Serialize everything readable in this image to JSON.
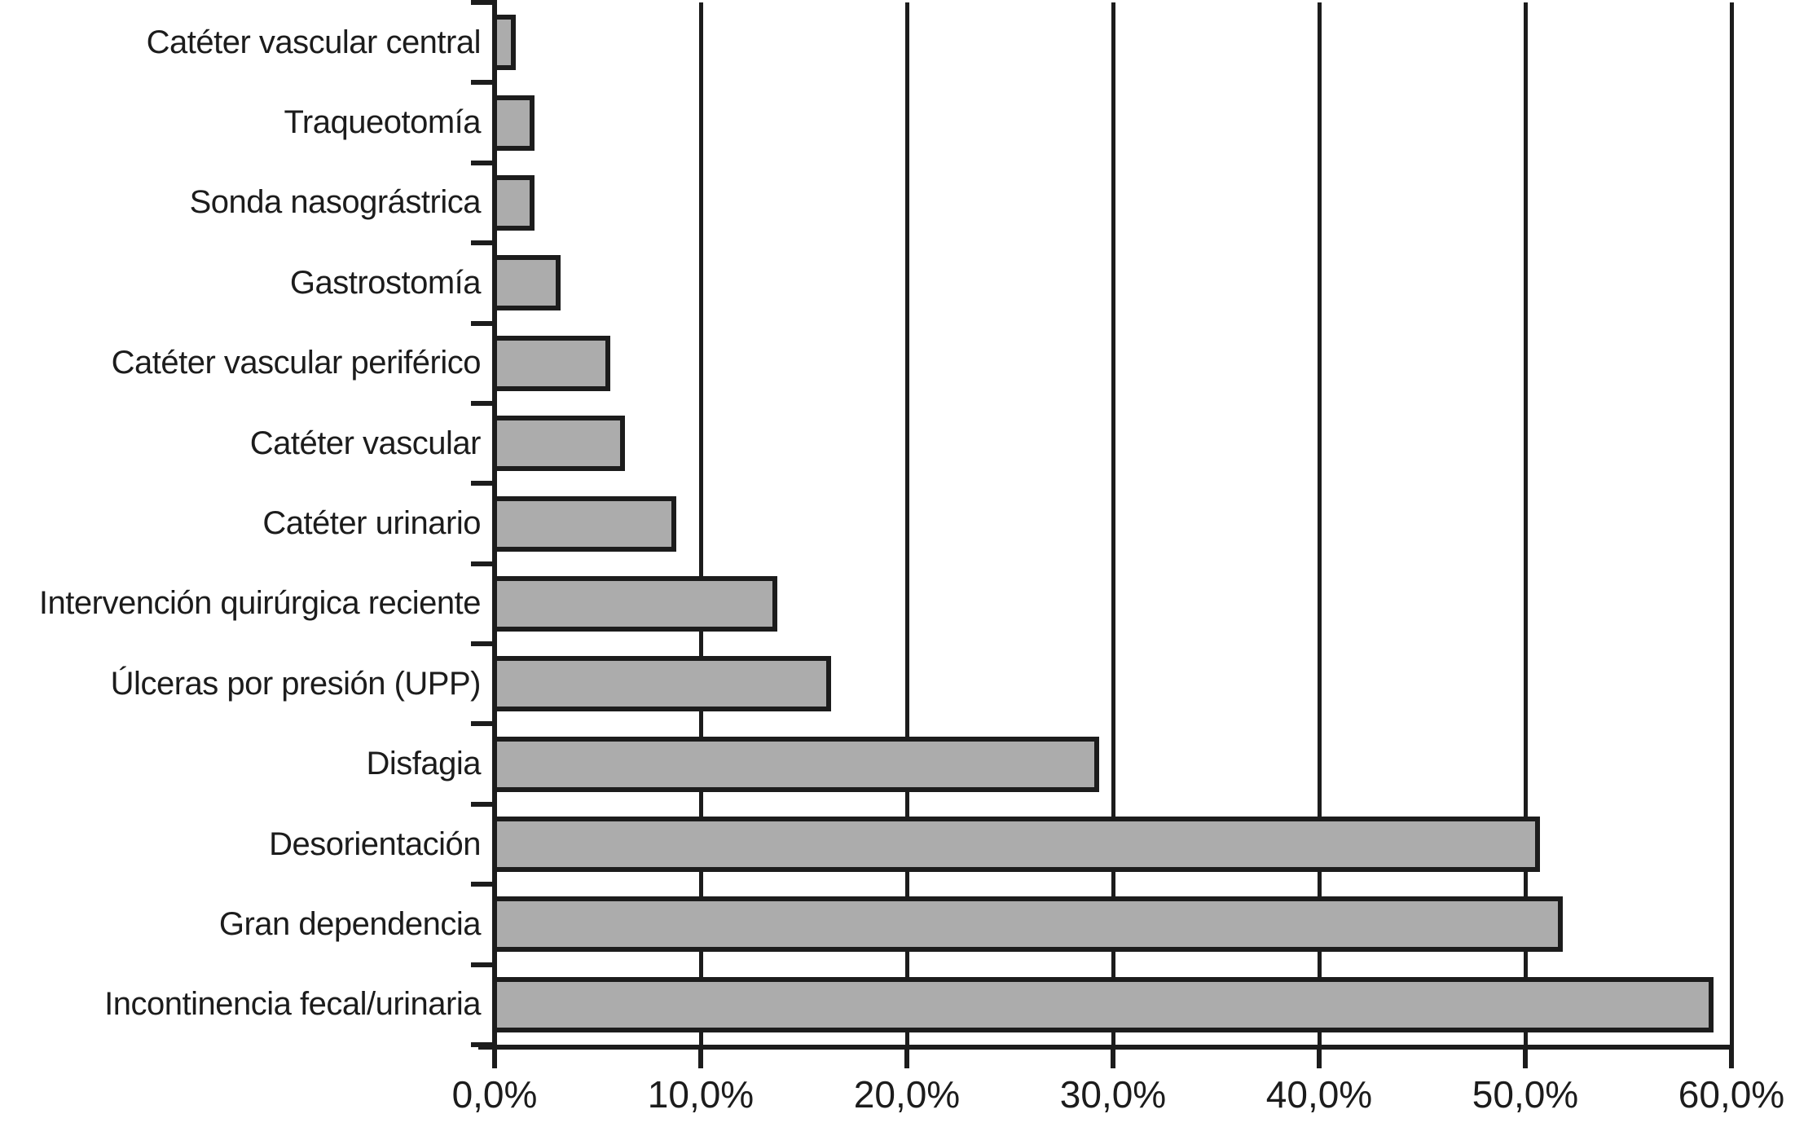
{
  "chart_data": {
    "type": "bar",
    "orientation": "horizontal",
    "categories": [
      "Catéter vascular central",
      "Traqueotomía",
      "Sonda nasográstrica",
      "Gastrostomía",
      "Catéter vascular periférico",
      "Catéter vascular",
      "Catéter urinario",
      "Intervención quirúrgica reciente",
      "Úlceras por presión (UPP)",
      "Disfagia",
      "Desorientación",
      "Gran dependencia",
      "Incontinencia fecal/urinaria"
    ],
    "values": [
      0.9,
      1.8,
      1.8,
      3.1,
      5.5,
      6.2,
      8.7,
      13.6,
      16.2,
      29.2,
      50.6,
      51.7,
      59.0
    ],
    "value_unit": "%",
    "x_axis": {
      "min": 0,
      "max": 60,
      "step": 10,
      "tick_labels": [
        "0,0%",
        "10,0%",
        "20,0%",
        "30,0%",
        "40,0%",
        "50,0%",
        "60,0%"
      ]
    },
    "grid": true,
    "legend": false,
    "colors": {
      "bar_fill": "#acacac",
      "bar_border": "#1c1c1c",
      "axis": "#1c1c1c",
      "text": "#1c1c1c",
      "background": "#ffffff"
    }
  }
}
